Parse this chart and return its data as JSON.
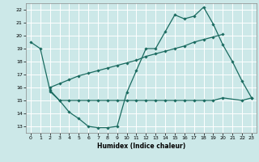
{
  "xlabel": "Humidex (Indice chaleur)",
  "bg_color": "#cce8e8",
  "grid_color": "#ffffff",
  "line_color": "#1a6b60",
  "xlim": [
    -0.5,
    23.5
  ],
  "ylim": [
    12.5,
    22.5
  ],
  "yticks": [
    13,
    14,
    15,
    16,
    17,
    18,
    19,
    20,
    21,
    22
  ],
  "xticks": [
    0,
    1,
    2,
    3,
    4,
    5,
    6,
    7,
    8,
    9,
    10,
    11,
    12,
    13,
    14,
    15,
    16,
    17,
    18,
    19,
    20,
    21,
    22,
    23
  ],
  "line1_x": [
    0,
    1,
    2,
    3,
    4,
    5,
    6,
    7,
    8,
    9,
    10,
    11,
    12,
    13,
    14,
    15,
    16,
    17,
    18,
    19,
    20,
    21,
    22,
    23
  ],
  "line1_y": [
    19.5,
    19.0,
    15.8,
    15.0,
    14.1,
    13.6,
    13.0,
    12.9,
    12.9,
    13.0,
    15.6,
    17.3,
    19.0,
    19.0,
    20.3,
    21.6,
    21.3,
    21.5,
    22.2,
    20.9,
    19.3,
    18.0,
    16.5,
    15.2
  ],
  "line2_x": [
    2,
    3,
    4,
    5,
    6,
    7,
    8,
    9,
    10,
    11,
    12,
    13,
    14,
    15,
    16,
    17,
    18,
    19,
    20
  ],
  "line2_y": [
    16.0,
    16.3,
    16.6,
    16.9,
    17.1,
    17.3,
    17.5,
    17.7,
    17.9,
    18.1,
    18.4,
    18.6,
    18.8,
    19.0,
    19.2,
    19.5,
    19.7,
    19.9,
    20.1
  ],
  "line3_x": [
    2,
    3,
    4,
    5,
    6,
    7,
    8,
    9,
    10,
    11,
    12,
    13,
    14,
    15,
    16,
    17,
    18,
    19,
    20,
    22,
    23
  ],
  "line3_y": [
    15.7,
    15.0,
    15.0,
    15.0,
    15.0,
    15.0,
    15.0,
    15.0,
    15.0,
    15.0,
    15.0,
    15.0,
    15.0,
    15.0,
    15.0,
    15.0,
    15.0,
    15.0,
    15.2,
    15.0,
    15.2
  ]
}
